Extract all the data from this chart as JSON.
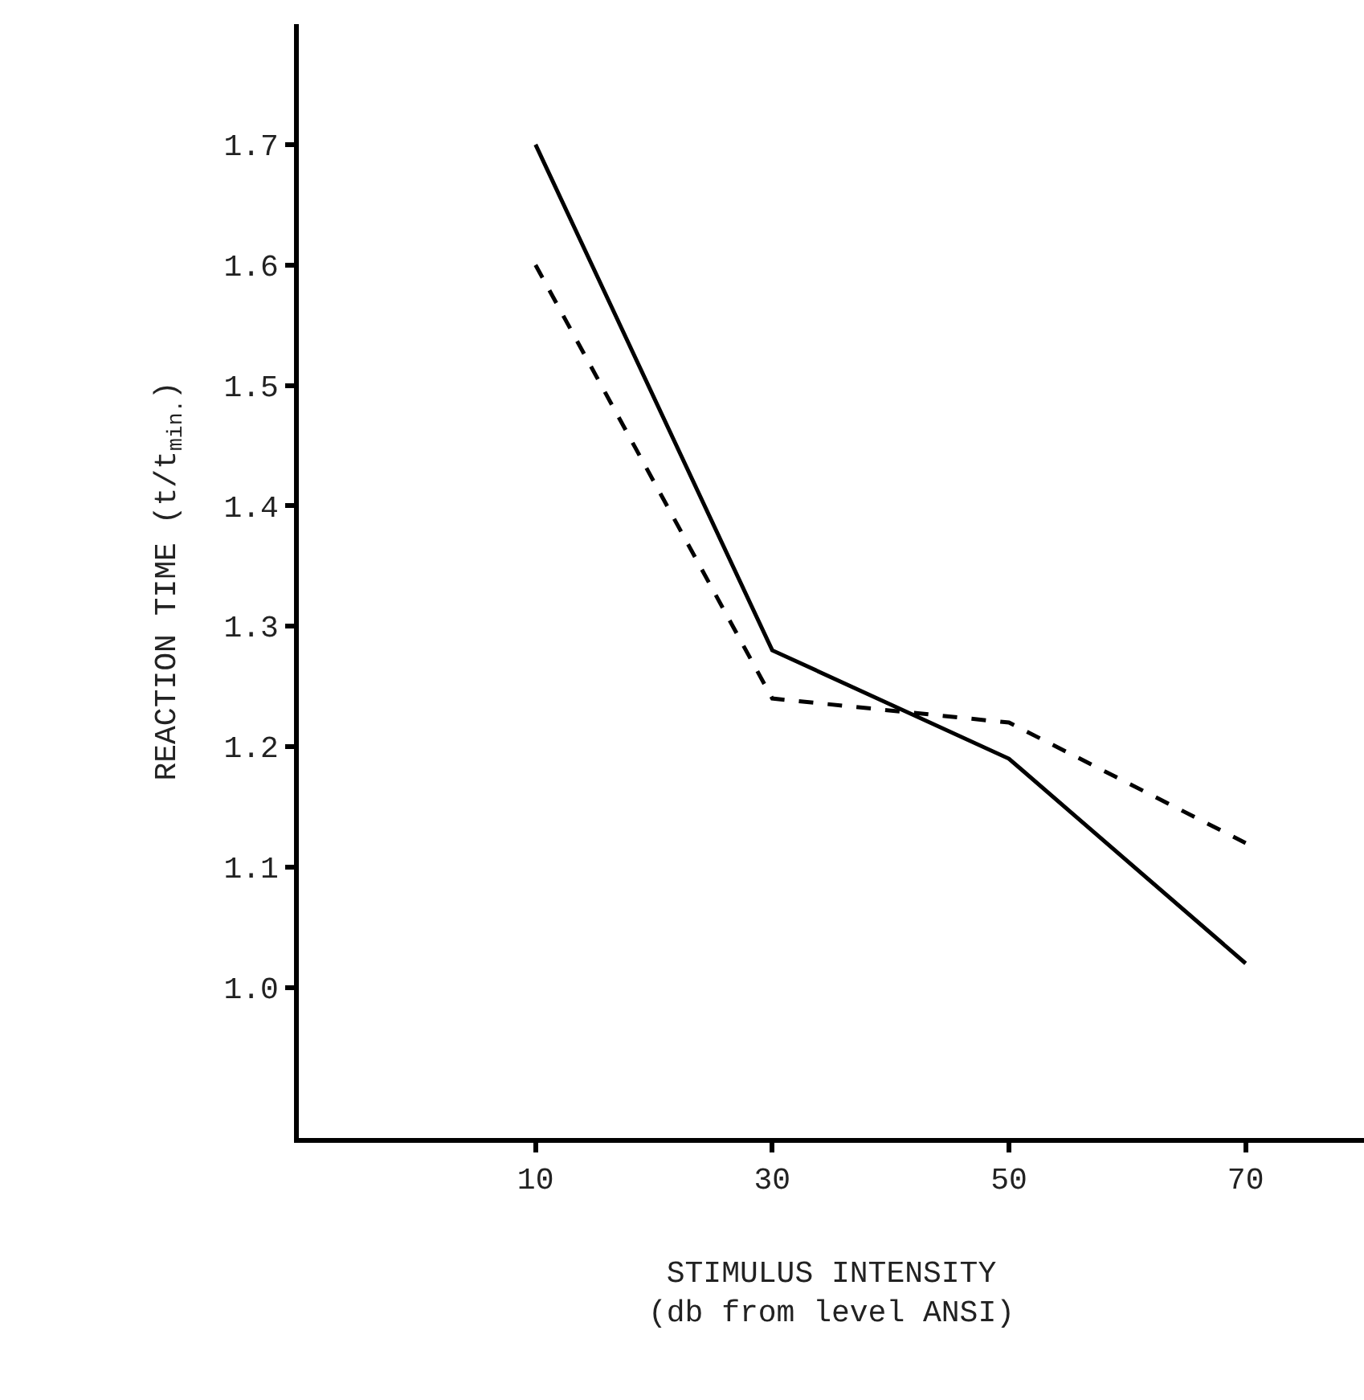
{
  "chart_data": {
    "type": "line",
    "xlabel": "STIMULUS INTENSITY\n(db from level ANSI)",
    "ylabel": "REACTION TIME (t/t$_{min.}$)",
    "x": [
      10,
      30,
      50,
      70
    ],
    "series": [
      {
        "color": "#000000",
        "line_style": "solid",
        "values": [
          1.7,
          1.28,
          1.19,
          1.02
        ]
      },
      {
        "color": "#000000",
        "line_style": "dashed",
        "values": [
          1.6,
          1.24,
          1.22,
          1.12
        ]
      }
    ],
    "xlim": [
      -10,
      80
    ],
    "xticks": [
      10,
      30,
      50,
      70
    ],
    "ylim": [
      0.875,
      1.8
    ],
    "yticks": [
      {
        "value": 1,
        "label": "1.0"
      },
      1.1,
      1.2,
      1.3,
      1.4,
      1.5,
      1.6,
      1.7
    ]
  }
}
